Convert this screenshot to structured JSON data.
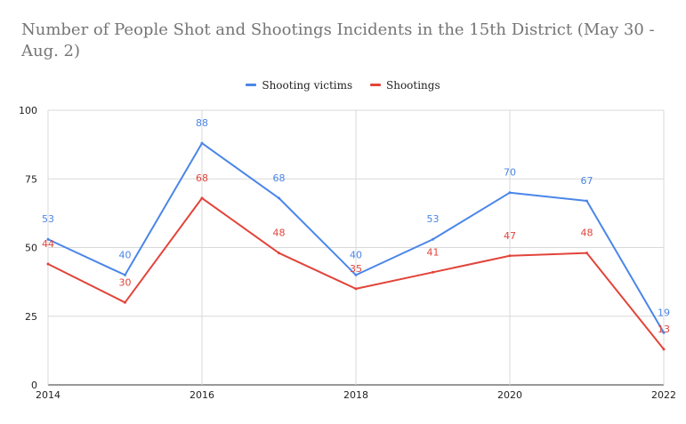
{
  "colors": {
    "shooting_victims": "#4a86e8",
    "shootings": "#e2443a",
    "grid": "#d9d9d9"
  },
  "chart_data": {
    "type": "line",
    "title": "Number of People Shot and Shootings Incidents in the 15th District (May 30 - Aug. 2)",
    "xlabel": "",
    "ylabel": "",
    "x": [
      2014,
      2015,
      2016,
      2017,
      2018,
      2019,
      2020,
      2021,
      2022
    ],
    "x_ticks": [
      "2014",
      "2016",
      "2018",
      "2020",
      "2022"
    ],
    "xlim": [
      2014,
      2022
    ],
    "y_ticks": [
      "0",
      "25",
      "50",
      "75",
      "100"
    ],
    "ylim": [
      0,
      100
    ],
    "grid": true,
    "legend_position": "top-center",
    "series": [
      {
        "name": "Shooting victims",
        "color": "#4a86e8",
        "values": [
          53,
          40,
          88,
          68,
          40,
          53,
          70,
          67,
          19
        ]
      },
      {
        "name": "Shootings",
        "color": "#e2443a",
        "values": [
          44,
          30,
          68,
          48,
          35,
          41,
          47,
          48,
          13
        ]
      }
    ]
  }
}
